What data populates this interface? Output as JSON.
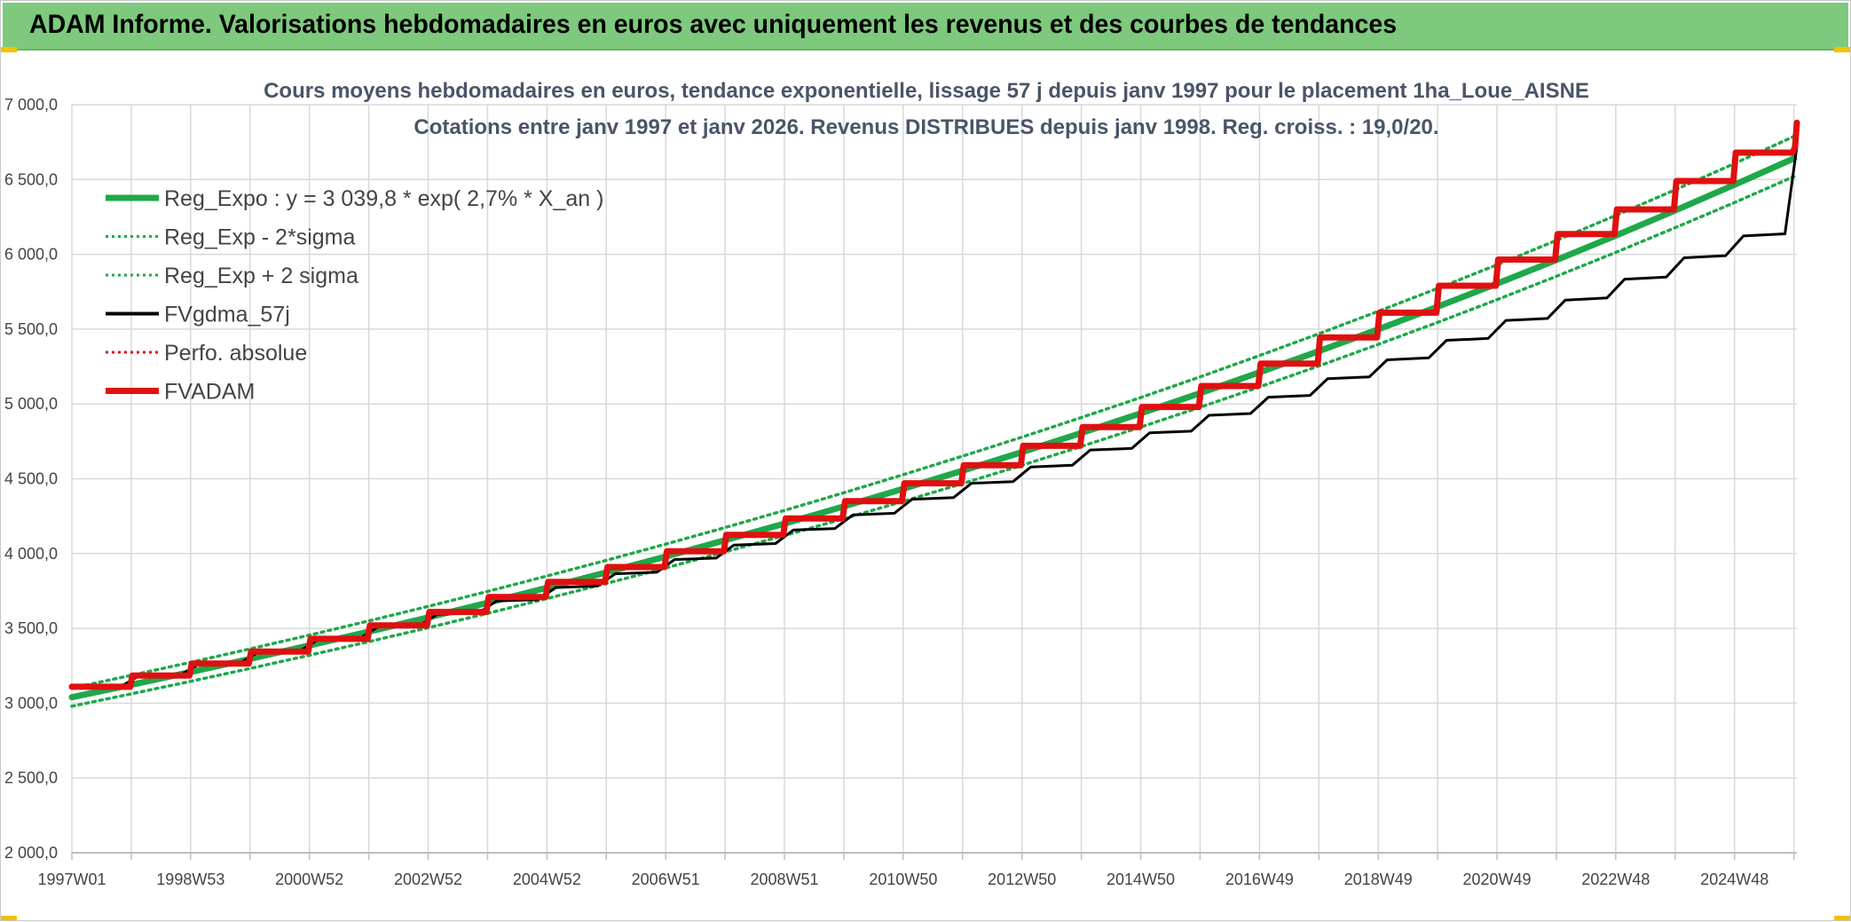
{
  "header": {
    "banner_title": "ADAM Informe. Valorisations hebdomadaires en euros avec uniquement les revenus et des courbes de tendances"
  },
  "colors": {
    "banner_bg": "#7ec97e",
    "reg_expo": "#1fa84a",
    "sigma_lines": "#1fa84a",
    "fvgdma": "#000000",
    "perfo": "#e01010",
    "fvadam": "#e01010",
    "grid": "#d9d9d9"
  },
  "chart_data": {
    "type": "line",
    "title_lines": [
      "Cours moyens hebdomadaires en euros, tendance exponentielle, lissage 57 j depuis janv 1997 pour le placement 1ha_Loue_AISNE",
      "Cotations entre janv 1997 et janv 2026. Revenus DISTRIBUES depuis janv 1998. Reg. croiss. : 19,0/20."
    ],
    "ylim": [
      2000,
      7000
    ],
    "y_ticks": [
      2000,
      2500,
      3000,
      3500,
      4000,
      4500,
      5000,
      5500,
      6000,
      6500,
      7000
    ],
    "y_tick_labels": [
      "2 000,0",
      "2 500,0",
      "3 000,0",
      "3 500,0",
      "4 000,0",
      "4 500,0",
      "5 000,0",
      "5 500,0",
      "6 000,0",
      "6 500,0",
      "7 000,0"
    ],
    "x_range_years": [
      1997.0,
      2026.05
    ],
    "x_tick_labels": [
      {
        "label": "1997W01",
        "year": 1997.0
      },
      {
        "label": "1998W53",
        "year": 1999.0
      },
      {
        "label": "2000W52",
        "year": 2001.0
      },
      {
        "label": "2002W52",
        "year": 2003.0
      },
      {
        "label": "2004W52",
        "year": 2005.0
      },
      {
        "label": "2006W51",
        "year": 2007.0
      },
      {
        "label": "2008W51",
        "year": 2009.0
      },
      {
        "label": "2010W50",
        "year": 2011.0
      },
      {
        "label": "2012W50",
        "year": 2013.0
      },
      {
        "label": "2014W50",
        "year": 2015.0
      },
      {
        "label": "2016W49",
        "year": 2017.0
      },
      {
        "label": "2018W49",
        "year": 2019.0
      },
      {
        "label": "2020W49",
        "year": 2021.0
      },
      {
        "label": "2022W48",
        "year": 2023.0
      },
      {
        "label": "2024W48",
        "year": 2025.0
      }
    ],
    "grid": true,
    "legend_position": "top-left",
    "series": [
      {
        "name": "Reg_Expo : y = 3 039,8 * exp( 2,7% *  X_an )",
        "style": "solid-thick",
        "color": "#1fa84a",
        "x": [
          1997,
          1998,
          1999,
          2000,
          2001,
          2002,
          2003,
          2004,
          2005,
          2006,
          2007,
          2008,
          2009,
          2010,
          2011,
          2012,
          2013,
          2014,
          2015,
          2016,
          2017,
          2018,
          2019,
          2020,
          2021,
          2022,
          2023,
          2024,
          2025,
          2026
        ],
        "y": [
          3040,
          3123,
          3208,
          3296,
          3386,
          3478,
          3573,
          3671,
          3771,
          3874,
          3980,
          4089,
          4200,
          4315,
          4433,
          4554,
          4678,
          4806,
          4937,
          5072,
          5211,
          5353,
          5499,
          5650,
          5804,
          5962,
          6125,
          6293,
          6465,
          6641
        ]
      },
      {
        "name": "Reg_Exp - 2*sigma",
        "style": "dotted",
        "color": "#1fa84a",
        "x": [
          1997,
          1998,
          1999,
          2000,
          2001,
          2002,
          2003,
          2004,
          2005,
          2006,
          2007,
          2008,
          2009,
          2010,
          2011,
          2012,
          2013,
          2014,
          2015,
          2016,
          2017,
          2018,
          2019,
          2020,
          2021,
          2022,
          2023,
          2024,
          2025,
          2026
        ],
        "y": [
          2980,
          3062,
          3146,
          3232,
          3320,
          3411,
          3504,
          3600,
          3699,
          3800,
          3904,
          4011,
          4121,
          4233,
          4349,
          4468,
          4590,
          4716,
          4845,
          4978,
          5114,
          5254,
          5398,
          5545,
          5697,
          5853,
          6013,
          6178,
          6346,
          6520
        ]
      },
      {
        "name": "Reg_Exp + 2 sigma",
        "style": "dotted",
        "color": "#1fa84a",
        "x": [
          1997,
          1998,
          1999,
          2000,
          2001,
          2002,
          2003,
          2004,
          2005,
          2006,
          2007,
          2008,
          2009,
          2010,
          2011,
          2012,
          2013,
          2014,
          2015,
          2016,
          2017,
          2018,
          2019,
          2020,
          2021,
          2022,
          2023,
          2024,
          2025,
          2026
        ],
        "y": [
          3100,
          3186,
          3273,
          3363,
          3455,
          3550,
          3647,
          3747,
          3850,
          3955,
          4063,
          4174,
          4288,
          4406,
          4527,
          4651,
          4778,
          4909,
          5043,
          5181,
          5323,
          5469,
          5619,
          5772,
          5930,
          6093,
          6260,
          6431,
          6607,
          6788
        ]
      },
      {
        "name": "FVgdma_57j",
        "style": "solid",
        "color": "#000000",
        "x": [
          1997.0,
          1997.85,
          1998.15,
          1998.85,
          1999.15,
          1999.85,
          2000.15,
          2000.85,
          2001.15,
          2001.85,
          2002.15,
          2002.85,
          2003.15,
          2003.85,
          2004.15,
          2004.85,
          2005.15,
          2005.85,
          2006.15,
          2006.85,
          2007.15,
          2007.85,
          2008.15,
          2008.85,
          2009.15,
          2009.85,
          2010.15,
          2010.85,
          2011.15,
          2011.85,
          2012.15,
          2012.85,
          2013.15,
          2013.85,
          2014.15,
          2014.85,
          2015.15,
          2015.85,
          2016.15,
          2016.85,
          2017.15,
          2017.85,
          2018.15,
          2018.85,
          2019.15,
          2019.85,
          2020.15,
          2020.85,
          2021.15,
          2021.85,
          2022.15,
          2022.85,
          2023.15,
          2023.85,
          2024.15,
          2024.85,
          2025.15,
          2025.85,
          2026.05
        ],
        "y": [
          3112,
          3118,
          3186,
          3194,
          3263,
          3272,
          3343,
          3352,
          3425,
          3434,
          3509,
          3518,
          3594,
          3604,
          3683,
          3692,
          3773,
          3783,
          3865,
          3875,
          3960,
          3970,
          4057,
          4067,
          4157,
          4167,
          4258,
          4269,
          4363,
          4374,
          4470,
          4481,
          4579,
          4591,
          4692,
          4703,
          4807,
          4818,
          4924,
          4936,
          5045,
          5057,
          5169,
          5181,
          5295,
          5308,
          5425,
          5438,
          5558,
          5571,
          5694,
          5708,
          5834,
          5848,
          5977,
          5991,
          6123,
          6137,
          6720
        ]
      },
      {
        "name": "Perfo. absolue",
        "style": "dotted",
        "color": "#e01010",
        "x": [],
        "y": []
      },
      {
        "name": "FVADAM",
        "style": "solid-thick",
        "color": "#e01010",
        "x": [
          1997.0,
          1997.98,
          1998.02,
          1998.98,
          1999.02,
          1999.98,
          2000.02,
          2000.98,
          2001.02,
          2001.98,
          2002.02,
          2002.98,
          2003.02,
          2003.98,
          2004.02,
          2004.98,
          2005.02,
          2005.98,
          2006.02,
          2006.98,
          2007.02,
          2007.98,
          2008.02,
          2008.98,
          2009.02,
          2009.98,
          2010.02,
          2010.98,
          2011.02,
          2011.98,
          2012.02,
          2012.98,
          2013.02,
          2013.98,
          2014.02,
          2014.98,
          2015.02,
          2015.98,
          2016.02,
          2016.98,
          2017.02,
          2017.98,
          2018.02,
          2018.98,
          2019.02,
          2019.98,
          2020.02,
          2020.98,
          2021.02,
          2021.98,
          2022.02,
          2022.98,
          2023.02,
          2023.98,
          2024.02,
          2024.98,
          2025.02,
          2025.98,
          2026.02,
          2026.05
        ],
        "y": [
          3110,
          3110,
          3185,
          3185,
          3265,
          3265,
          3345,
          3345,
          3430,
          3430,
          3520,
          3520,
          3610,
          3610,
          3710,
          3710,
          3810,
          3810,
          3910,
          3910,
          4015,
          4015,
          4125,
          4125,
          4235,
          4235,
          4350,
          4350,
          4470,
          4470,
          4590,
          4590,
          4720,
          4720,
          4845,
          4845,
          4980,
          4980,
          5120,
          5120,
          5270,
          5270,
          5445,
          5445,
          5610,
          5610,
          5790,
          5790,
          5965,
          5965,
          6135,
          6135,
          6300,
          6300,
          6490,
          6490,
          6680,
          6680,
          6720,
          6880
        ]
      }
    ]
  }
}
